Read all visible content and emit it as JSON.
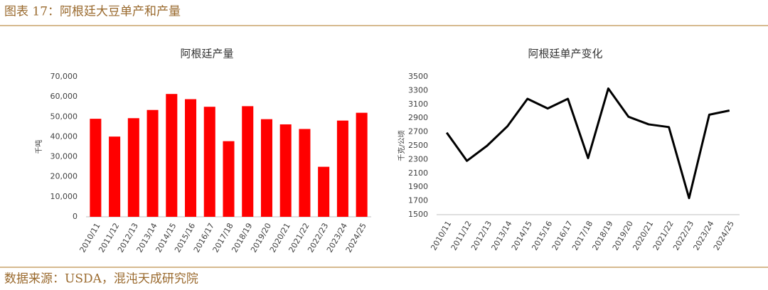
{
  "title": "图表 17：阿根廷大豆单产和产量",
  "source": "数据来源：USDA，混沌天成研究院",
  "chart_data": [
    {
      "type": "bar",
      "title": "阿根廷产量",
      "y_label": "千吨",
      "color": "#ff0000",
      "categories": [
        "2010/11",
        "2011/12",
        "2012/13",
        "2013/14",
        "2014/15",
        "2015/16",
        "2016/17",
        "2017/18",
        "2018/19",
        "2019/20",
        "2020/21",
        "2021/22",
        "2022/23",
        "2023/24",
        "2024/25"
      ],
      "values": [
        49000,
        40100,
        49300,
        53400,
        61400,
        58800,
        55000,
        37800,
        55300,
        48800,
        46200,
        43900,
        25000,
        48100,
        52000
      ],
      "ylim": [
        0,
        70000
      ],
      "yticks": [
        0,
        {
          "value": 10000,
          "label": "10,000"
        },
        {
          "value": 20000,
          "label": "20,000"
        },
        {
          "value": 30000,
          "label": "30,000"
        },
        {
          "value": 40000,
          "label": "40,000"
        },
        {
          "value": 50000,
          "label": "50,000"
        },
        {
          "value": 60000,
          "label": "60,000"
        },
        {
          "value": 70000,
          "label": "70,000"
        }
      ]
    },
    {
      "type": "line",
      "title": "阿根廷单产变化",
      "y_label": "千克/公顷",
      "color": "#000000",
      "categories": [
        "2010/11",
        "2011/12",
        "2012/13",
        "2013/14",
        "2014/15",
        "2015/16",
        "2016/17",
        "2017/18",
        "2018/19",
        "2019/20",
        "2020/21",
        "2021/22",
        "2022/23",
        "2023/24",
        "2024/25"
      ],
      "values": [
        2690,
        2280,
        2500,
        2780,
        3180,
        3040,
        3180,
        2320,
        3330,
        2920,
        2810,
        2770,
        1740,
        2950,
        3010
      ],
      "ylim": [
        1500,
        3500
      ],
      "yticks": [
        1500,
        1700,
        1900,
        2100,
        2300,
        2500,
        2700,
        2900,
        3100,
        3300,
        3500
      ]
    }
  ]
}
